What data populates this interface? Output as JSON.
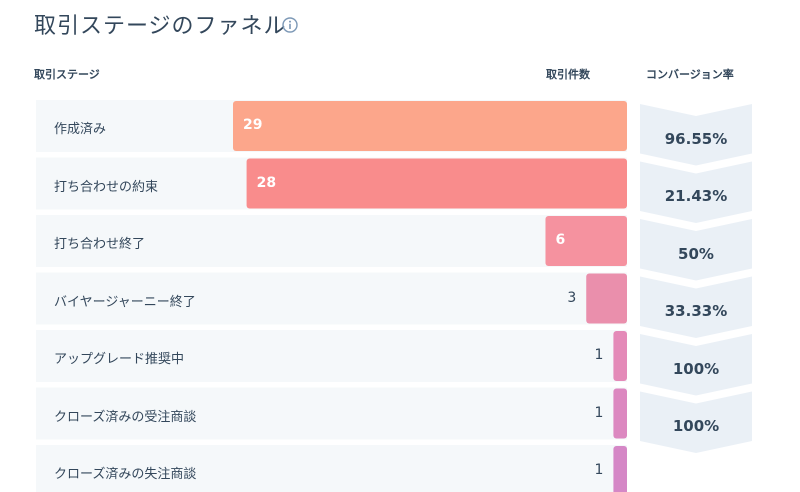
{
  "header": {
    "title": "取引ステージのファネル",
    "col_stage": "取引ステージ",
    "col_count": "取引件数",
    "col_conversion": "コンバージョン率"
  },
  "icons": {
    "info": "info-icon"
  },
  "colors": {
    "row_background": "#f5f8fa",
    "conversion_background": "#eaf0f6",
    "bar_colors": [
      "#fca68b",
      "#f98c8c",
      "#f5929f",
      "#ea8fac",
      "#e48ab8",
      "#dc88c0",
      "#d587c6"
    ]
  },
  "chart_data": {
    "type": "bar",
    "orientation": "horizontal-funnel",
    "categories": [
      "作成済み",
      "打ち合わせの約束",
      "打ち合わせ終了",
      "バイヤージャーニー終了",
      "アップグレード推奨中",
      "クローズ済みの受注商談",
      "クローズ済みの失注商談"
    ],
    "values": [
      29,
      28,
      6,
      3,
      1,
      1,
      1
    ],
    "conversion_rates": [
      "96.55%",
      "21.43%",
      "50%",
      "33.33%",
      "100%",
      "100%"
    ],
    "title": "取引ステージのファネル",
    "xlim": [
      0,
      29
    ]
  }
}
